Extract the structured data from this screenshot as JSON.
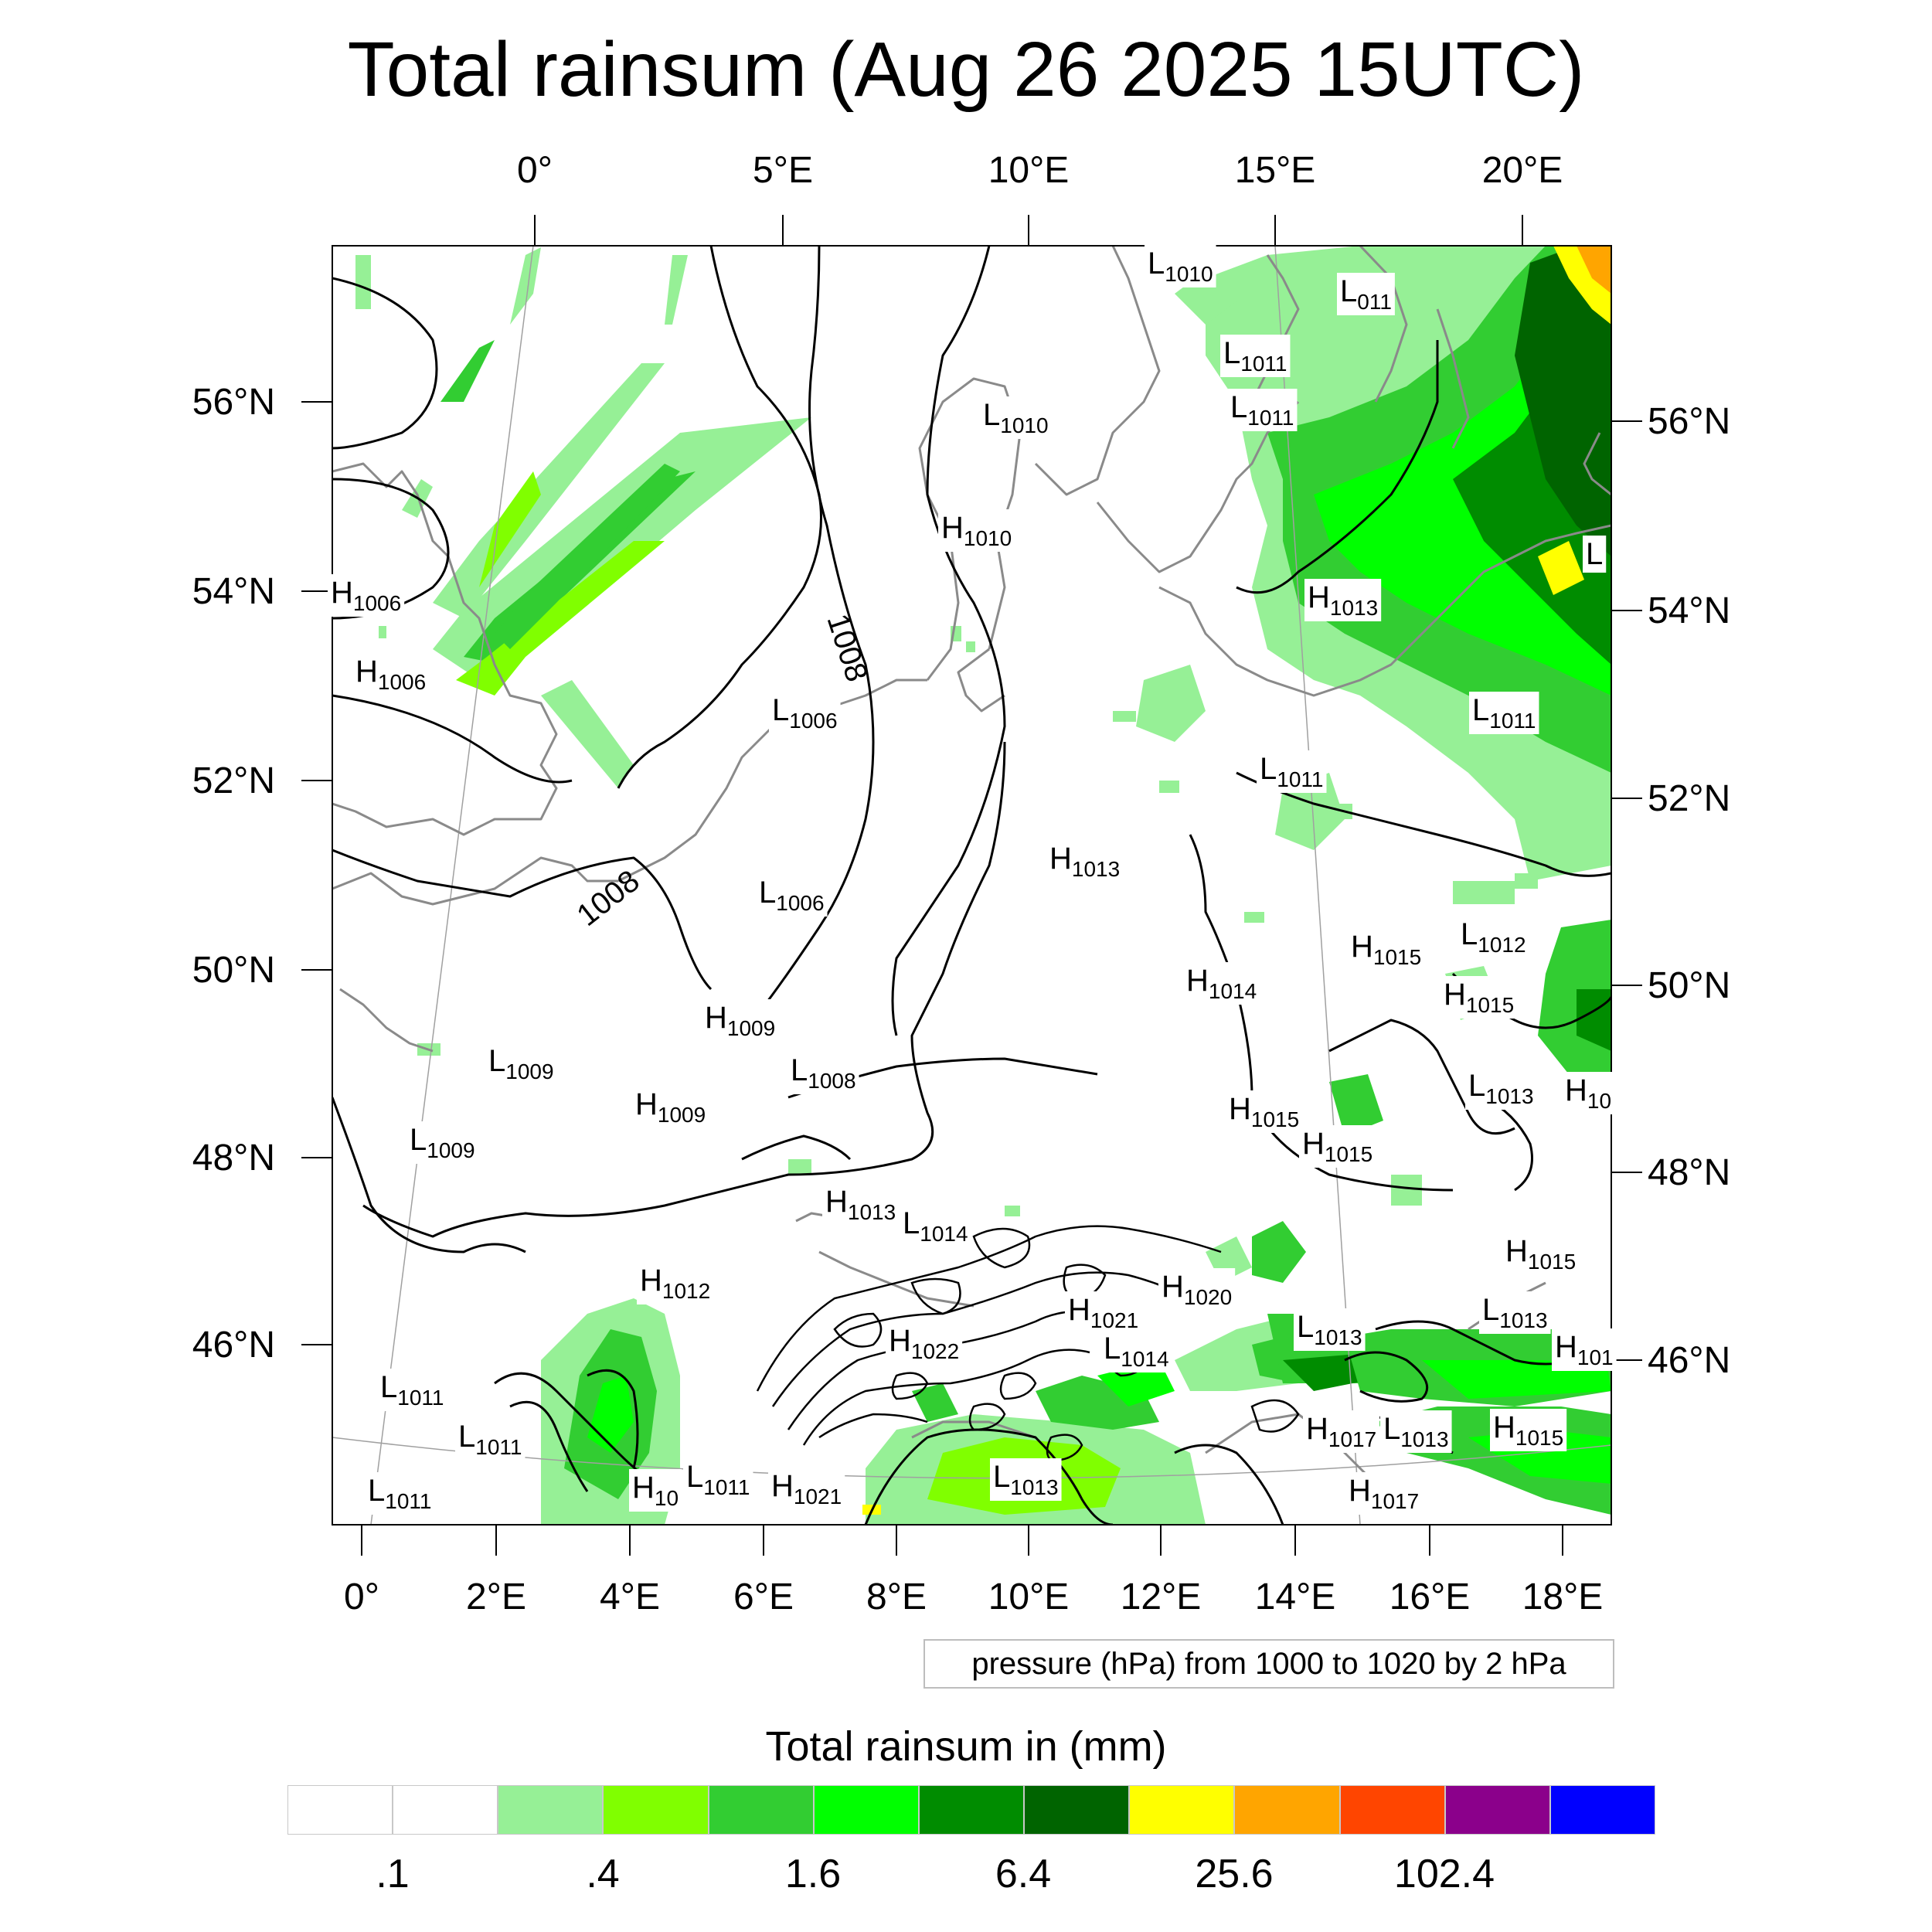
{
  "title": "Total rainsum (Aug 26 2025 15UTC)",
  "top_lon_ticks": [
    "0°",
    "5°E",
    "10°E",
    "15°E",
    "20°E"
  ],
  "bottom_lon_ticks": [
    "0°",
    "2°E",
    "4°E",
    "6°E",
    "8°E",
    "10°E",
    "12°E",
    "14°E",
    "16°E",
    "18°E"
  ],
  "left_lat_ticks": [
    "56°N",
    "54°N",
    "52°N",
    "50°N",
    "48°N",
    "46°N"
  ],
  "right_lat_ticks": [
    "56°N",
    "54°N",
    "52°N",
    "50°N",
    "48°N",
    "46°N"
  ],
  "contour_labels": [
    "1008",
    "1008"
  ],
  "pressure_centers": [
    {
      "type": "L",
      "value": "1010"
    },
    {
      "type": "L",
      "value": "011"
    },
    {
      "type": "L",
      "value": "1011"
    },
    {
      "type": "L",
      "value": "1011"
    },
    {
      "type": "L",
      "value": "1010"
    },
    {
      "type": "H",
      "value": "1010"
    },
    {
      "type": "L",
      "value": ""
    },
    {
      "type": "H",
      "value": "1006"
    },
    {
      "type": "H",
      "value": "1006"
    },
    {
      "type": "H",
      "value": "1013"
    },
    {
      "type": "L",
      "value": "1006"
    },
    {
      "type": "L",
      "value": "1011"
    },
    {
      "type": "L",
      "value": "1011"
    },
    {
      "type": "H",
      "value": "1013"
    },
    {
      "type": "L",
      "value": "1006"
    },
    {
      "type": "H",
      "value": "1015"
    },
    {
      "type": "L",
      "value": "1012"
    },
    {
      "type": "H",
      "value": "1014"
    },
    {
      "type": "H",
      "value": "1015"
    },
    {
      "type": "H",
      "value": "1009"
    },
    {
      "type": "L",
      "value": "1009"
    },
    {
      "type": "L",
      "value": "1008"
    },
    {
      "type": "H",
      "value": "1009"
    },
    {
      "type": "L",
      "value": "1013"
    },
    {
      "type": "H",
      "value": "10"
    },
    {
      "type": "H",
      "value": "1015"
    },
    {
      "type": "H",
      "value": "1015"
    },
    {
      "type": "L",
      "value": "1009"
    },
    {
      "type": "H",
      "value": "1013"
    },
    {
      "type": "L",
      "value": "1014"
    },
    {
      "type": "H",
      "value": "1015"
    },
    {
      "type": "H",
      "value": "1012"
    },
    {
      "type": "H",
      "value": "1020"
    },
    {
      "type": "H",
      "value": "1021"
    },
    {
      "type": "L",
      "value": "1013"
    },
    {
      "type": "L",
      "value": "1013"
    },
    {
      "type": "H",
      "value": "1022"
    },
    {
      "type": "L",
      "value": "1014"
    },
    {
      "type": "H",
      "value": "101"
    },
    {
      "type": "L",
      "value": "1011"
    },
    {
      "type": "L",
      "value": "1011"
    },
    {
      "type": "H",
      "value": "1017"
    },
    {
      "type": "L",
      "value": "1013"
    },
    {
      "type": "H",
      "value": "1015"
    },
    {
      "type": "H",
      "value": "10"
    },
    {
      "type": "L",
      "value": "1011"
    },
    {
      "type": "H",
      "value": "1021"
    },
    {
      "type": "L",
      "value": "1013"
    },
    {
      "type": "L",
      "value": "1011"
    },
    {
      "type": "H",
      "value": "1017"
    }
  ],
  "contour_note": "pressure (hPa) from 1000 to 1020 by 2 hPa",
  "colorbar": {
    "title": "Total rainsum in (mm)",
    "colors": [
      "#ffffff",
      "#ffffff",
      "#96f096",
      "#80ff00",
      "#32cd32",
      "#00ff00",
      "#008c00",
      "#006400",
      "#ffff00",
      "#ffa500",
      "#ff4500",
      "#8b008b",
      "#0000ff"
    ],
    "labels": [
      ".1",
      ".4",
      "1.6",
      "6.4",
      "25.6",
      "102.4"
    ]
  }
}
